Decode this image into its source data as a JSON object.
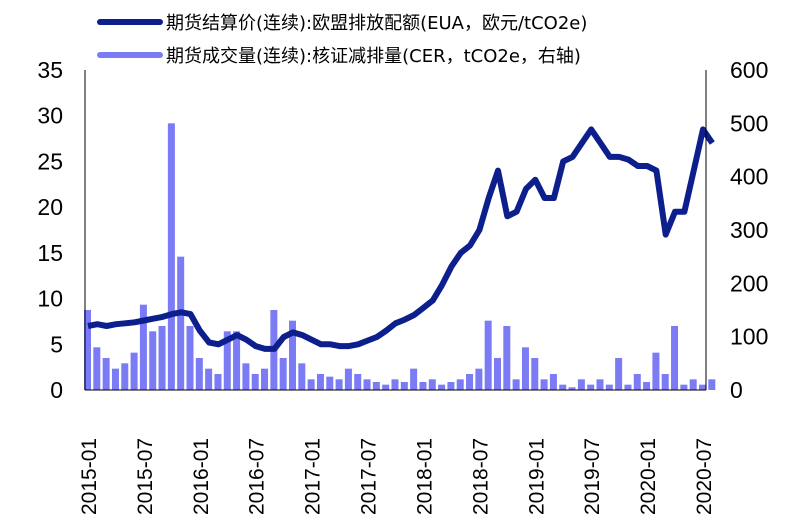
{
  "chart_data": {
    "type": "line+bar",
    "legend": [
      {
        "label": "期货结算价(连续):欧盟排放配额(EUA，欧元/tCO2e)",
        "color": "#0d1f8c",
        "type": "line",
        "axis": "left"
      },
      {
        "label": "期货成交量(连续):核证减排量(CER，tCO2e，右轴)",
        "color": "#7b7bf5",
        "type": "bar",
        "axis": "right"
      }
    ],
    "legend_position": "top",
    "y_left": {
      "range": [
        0,
        35
      ],
      "ticks": [
        "0",
        "5",
        "10",
        "15",
        "20",
        "25",
        "30",
        "35"
      ]
    },
    "y_right": {
      "range": [
        0,
        600
      ],
      "ticks": [
        "0",
        "100",
        "200",
        "300",
        "400",
        "500",
        "600"
      ]
    },
    "x_ticks": [
      "2015-01",
      "2015-07",
      "2016-01",
      "2016-07",
      "2017-01",
      "2017-07",
      "2018-01",
      "2018-07",
      "2019-01",
      "2019-07",
      "2020-01",
      "2020-07"
    ],
    "x_start": "2015-01",
    "period": "monthly",
    "eua_price": [
      7,
      7.2,
      7,
      7.2,
      7.3,
      7.4,
      7.6,
      7.8,
      8,
      8.3,
      8.5,
      8.3,
      6.5,
      5.2,
      5,
      5.5,
      6,
      5.5,
      4.8,
      4.5,
      4.5,
      5.8,
      6.3,
      6,
      5.5,
      5,
      5,
      4.8,
      4.8,
      5,
      5.4,
      5.8,
      6.5,
      7.3,
      7.7,
      8.2,
      9,
      9.8,
      11.5,
      13.5,
      15,
      15.8,
      17.5,
      21,
      24,
      19,
      19.5,
      22,
      23,
      21,
      21,
      25,
      25.5,
      27,
      28.5,
      27,
      25.5,
      25.5,
      25.2,
      24.5,
      24.5,
      24,
      17,
      19.5,
      19.5,
      24,
      28.5,
      27
    ],
    "cer_volume": [
      150,
      80,
      60,
      40,
      50,
      70,
      160,
      110,
      120,
      500,
      250,
      120,
      60,
      40,
      30,
      110,
      110,
      50,
      30,
      40,
      150,
      60,
      130,
      50,
      20,
      30,
      25,
      20,
      40,
      30,
      20,
      15,
      10,
      20,
      15,
      40,
      15,
      20,
      10,
      15,
      20,
      30,
      40,
      130,
      60,
      120,
      20,
      80,
      60,
      20,
      30,
      10,
      5,
      20,
      10,
      20,
      10,
      60,
      10,
      30,
      15,
      70,
      30,
      120,
      10,
      20,
      10,
      20
    ]
  }
}
